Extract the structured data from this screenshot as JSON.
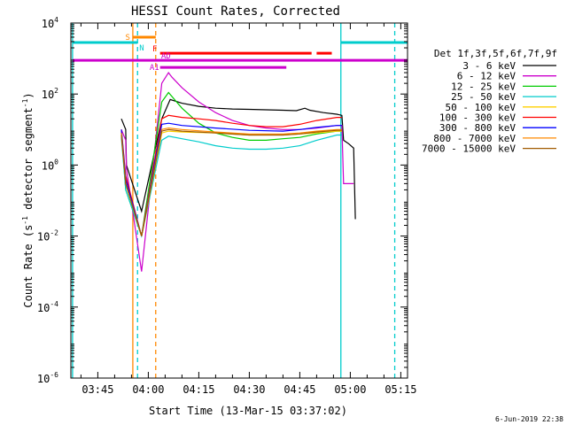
{
  "chart_data": {
    "type": "line",
    "title": "HESSI Count Rates, Corrected",
    "xlabel": "Start Time (13-Mar-15 03:37:02)",
    "ylabel_main": "Count Rate (s",
    "ylabel_sup1": "-1",
    "ylabel_mid": " detector segment",
    "ylabel_sup2": "-1",
    "ylabel_end": ")",
    "footer_date": "6-Jun-2019 22:38",
    "ylog": true,
    "xlim_min": [
      37.0,
      137.0
    ],
    "ylim_exp": [
      -6,
      4
    ],
    "x_ticks": [
      {
        "min": 45,
        "label": "03:45"
      },
      {
        "min": 60,
        "label": "04:00"
      },
      {
        "min": 75,
        "label": "04:15"
      },
      {
        "min": 90,
        "label": "04:30"
      },
      {
        "min": 105,
        "label": "04:45"
      },
      {
        "min": 120,
        "label": "05:00"
      },
      {
        "min": 135,
        "label": "05:15"
      }
    ],
    "y_ticks": [
      {
        "exp": 4,
        "base": "10",
        "sup": "4"
      },
      {
        "exp": 2,
        "base": "10",
        "sup": "2"
      },
      {
        "exp": 0,
        "base": "10",
        "sup": "0"
      },
      {
        "exp": -2,
        "base": "10",
        "sup": "-2"
      },
      {
        "exp": -4,
        "base": "10",
        "sup": "-4"
      },
      {
        "exp": -6,
        "base": "10",
        "sup": "-6"
      }
    ],
    "legend_title": "Det 1f,3f,5f,6f,7f,9f",
    "series": [
      {
        "name": "3 - 6 keV",
        "color": "#000000",
        "x": [
          52.0,
          53.3,
          53.5,
          58.0,
          64.0,
          66.5,
          70.0,
          75.0,
          80.0,
          85.0,
          90.0,
          95.0,
          100.0,
          104.0,
          106.5,
          108.0,
          112.0,
          116.0,
          117.5,
          118.0,
          119.5,
          121.0,
          121.5
        ],
        "y": [
          20,
          10,
          1,
          0.05,
          20,
          70,
          55,
          45,
          40,
          38,
          37,
          36,
          35,
          34,
          40,
          35,
          30,
          27,
          25,
          5,
          4,
          3,
          0.03
        ]
      },
      {
        "name": "6 - 12 keV",
        "color": "#cc00cc",
        "x": [
          52.0,
          53.3,
          53.5,
          58.0,
          64.0,
          66.0,
          67.0,
          70.0,
          75.0,
          80.0,
          85.0,
          90.0,
          95.0,
          100.0,
          105.0,
          110.0,
          116.0,
          117.5,
          118.0,
          119.5,
          121.0
        ],
        "y": [
          10,
          5,
          0.8,
          0.001,
          200,
          400,
          300,
          150,
          60,
          30,
          18,
          13,
          11,
          10,
          10,
          11,
          13,
          13,
          0.3,
          0.3,
          0.3
        ]
      },
      {
        "name": "12 - 25 keV",
        "color": "#00cc00",
        "x": [
          52.0,
          53.3,
          58.0,
          64.0,
          66.0,
          70.0,
          75.0,
          80.0,
          85.0,
          90.0,
          95.0,
          100.0,
          105.0,
          110.0,
          116.0,
          117.5
        ],
        "y": [
          8,
          0.2,
          0.01,
          60,
          110,
          40,
          15,
          8,
          6,
          5,
          5,
          5.5,
          6,
          7.5,
          9,
          9
        ]
      },
      {
        "name": "25 - 50 keV",
        "color": "#00cccc",
        "x": [
          52.0,
          53.3,
          58.0,
          64.0,
          66.0,
          70.0,
          75.0,
          80.0,
          85.0,
          90.0,
          95.0,
          100.0,
          105.0,
          110.0,
          116.0,
          117.5
        ],
        "y": [
          6,
          0.2,
          0.01,
          5,
          6.5,
          5.5,
          4.5,
          3.5,
          3.0,
          2.8,
          2.8,
          3.0,
          3.5,
          5.0,
          7.0,
          7.0
        ]
      },
      {
        "name": "50 - 100 keV",
        "color": "#ffd000",
        "x": [
          52.0,
          53.3,
          58.0,
          64.0,
          66.0,
          70.0,
          80.0,
          90.0,
          100.0,
          105.0,
          110.0,
          116.0,
          117.5
        ],
        "y": [
          8,
          0.3,
          0.01,
          8,
          9,
          8.5,
          8,
          7,
          7,
          7.5,
          8,
          9,
          9
        ]
      },
      {
        "name": "100 - 300 keV",
        "color": "#ff0000",
        "x": [
          52.0,
          53.3,
          58.0,
          64.0,
          66.0,
          70.0,
          75.0,
          80.0,
          85.0,
          90.0,
          95.0,
          100.0,
          105.0,
          110.0,
          116.0,
          117.5
        ],
        "y": [
          10,
          0.5,
          0.01,
          20,
          25,
          22,
          20,
          18,
          15,
          13,
          12,
          12,
          14,
          18,
          22,
          22
        ]
      },
      {
        "name": "300 - 800 keV",
        "color": "#0000ff",
        "x": [
          52.0,
          53.3,
          58.0,
          64.0,
          66.0,
          70.0,
          80.0,
          90.0,
          100.0,
          105.0,
          110.0,
          116.0,
          117.5
        ],
        "y": [
          10,
          0.4,
          0.01,
          14,
          15,
          13,
          11,
          9.5,
          9,
          10,
          11.5,
          13,
          13
        ]
      },
      {
        "name": "800 - 7000 keV",
        "color": "#ff8800",
        "x": [
          52.0,
          53.3,
          58.0,
          64.0,
          66.0,
          70.0,
          80.0,
          90.0,
          100.0,
          105.0,
          110.0,
          116.0,
          117.5
        ],
        "y": [
          8,
          0.3,
          0.01,
          10,
          11,
          10,
          8.5,
          7.5,
          7.5,
          8,
          9,
          10,
          10
        ]
      },
      {
        "name": "7000 - 15000 keV",
        "color": "#a05a00",
        "x": [
          52.0,
          53.3,
          58.0,
          64.0,
          66.0,
          70.0,
          80.0,
          90.0,
          100.0,
          105.0,
          110.0,
          116.0,
          117.5
        ],
        "y": [
          7,
          0.3,
          0.01,
          9,
          10,
          9,
          8,
          7,
          7,
          7.5,
          8.5,
          9.5,
          9.5
        ]
      }
    ],
    "vlines": [
      {
        "min": 37.5,
        "color": "#00cccc",
        "style": "solid"
      },
      {
        "min": 55.4,
        "color": "#ff8800",
        "style": "solid"
      },
      {
        "min": 56.8,
        "color": "#00cccc",
        "style": "dashed"
      },
      {
        "min": 62.2,
        "color": "#ff8800",
        "style": "dashed"
      },
      {
        "min": 117.2,
        "color": "#00cccc",
        "style": "solid"
      },
      {
        "min": 133.2,
        "color": "#00cccc",
        "style": "dashed"
      }
    ],
    "flags": [
      {
        "label": "S",
        "color": "#ff8800",
        "x0": 55.4,
        "x1": 62.2,
        "y_exp": 3.6
      },
      {
        "label": "N",
        "color": "#00cccc",
        "x0": 37.5,
        "x1": 56.8,
        "y_exp": 3.45
      },
      {
        "label": "",
        "color": "#00cccc",
        "x0": 117.2,
        "x1": 137.0,
        "y_exp": 3.45
      },
      {
        "label": "F",
        "color": "#ff0000",
        "x0": 63.5,
        "x1": 108.5,
        "y_exp": 3.15
      },
      {
        "label": "",
        "color": "#ff0000",
        "x0": 110.0,
        "x1": 114.5,
        "y_exp": 3.15
      },
      {
        "label": "AD",
        "color": "#cc00cc",
        "x0": 37.5,
        "x1": 137.0,
        "y_exp": 2.95
      },
      {
        "label": "A1",
        "color": "#cc00cc",
        "x0": 63.5,
        "x1": 101.0,
        "y_exp": 2.75
      }
    ]
  }
}
